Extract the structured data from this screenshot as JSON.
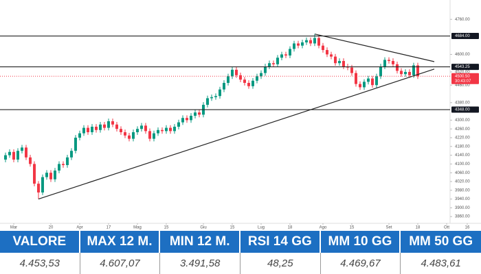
{
  "chart_data": {
    "type": "candlestick",
    "up_color": "#089981",
    "down_color": "#f23645",
    "xlim": [
      -1,
      115
    ],
    "xticks": [
      {
        "value": 2,
        "label": "Mar"
      },
      {
        "value": 11,
        "label": "20"
      },
      {
        "value": 18,
        "label": "Apr"
      },
      {
        "value": 25,
        "label": "17"
      },
      {
        "value": 32,
        "label": "Mag"
      },
      {
        "value": 39,
        "label": "15"
      },
      {
        "value": 48,
        "label": "Giu"
      },
      {
        "value": 55,
        "label": "15"
      },
      {
        "value": 62,
        "label": "Lug"
      },
      {
        "value": 69,
        "label": "18"
      },
      {
        "value": 77,
        "label": "Ago"
      },
      {
        "value": 84,
        "label": "15"
      },
      {
        "value": 93,
        "label": "Set"
      },
      {
        "value": 100,
        "label": "18"
      },
      {
        "value": 107,
        "label": "Ott"
      },
      {
        "value": 112,
        "label": "16"
      }
    ],
    "ylim": [
      3848,
      4792
    ],
    "yticks": [
      {
        "value": 4760,
        "label": "4760.00"
      },
      {
        "value": 4600,
        "label": "4600.00"
      },
      {
        "value": 4520,
        "label": "4520.00"
      },
      {
        "value": 4460,
        "label": "4460.00"
      },
      {
        "value": 4380,
        "label": "4380.00"
      },
      {
        "value": 4300,
        "label": "4300.00"
      },
      {
        "value": 4260,
        "label": "4260.00"
      },
      {
        "value": 4220,
        "label": "4220.00"
      },
      {
        "value": 4180,
        "label": "4180.00"
      },
      {
        "value": 4140,
        "label": "4140.00"
      },
      {
        "value": 4100,
        "label": "4100.00"
      },
      {
        "value": 4060,
        "label": "4060.00"
      },
      {
        "value": 4020,
        "label": "4020.00"
      },
      {
        "value": 3980,
        "label": "3980.00"
      },
      {
        "value": 3940,
        "label": "3940.00"
      },
      {
        "value": 3900,
        "label": "3900.00"
      },
      {
        "value": 3860,
        "label": "3860.00"
      }
    ],
    "levels": [
      {
        "value": 4684,
        "label": "4684.00"
      },
      {
        "value": 4543.25,
        "label": "4543.25"
      },
      {
        "value": 4348,
        "label": "4348.00"
      }
    ],
    "price_tag": {
      "value": 4500.5,
      "label": "4500.50",
      "countdown": "30:43:07"
    },
    "trendlines": [
      {
        "x": [
          8,
          104
        ],
        "y": [
          3940,
          4533
        ]
      },
      {
        "x": [
          75,
          104
        ],
        "y": [
          4693,
          4567
        ]
      }
    ],
    "open": [
      4120,
      4140,
      4155,
      4120,
      4160,
      4175,
      4130,
      4100,
      4010,
      3970,
      4040,
      4060,
      4030,
      4070,
      4100,
      4095,
      4130,
      4160,
      4220,
      4240,
      4265,
      4245,
      4270,
      4255,
      4280,
      4265,
      4295,
      4280,
      4260,
      4245,
      4230,
      4215,
      4245,
      4260,
      4275,
      4250,
      4215,
      4240,
      4255,
      4250,
      4265,
      4250,
      4270,
      4290,
      4310,
      4300,
      4320,
      4335,
      4325,
      4370,
      4400,
      4405,
      4410,
      4440,
      4470,
      4500,
      4530,
      4505,
      4485,
      4470,
      4455,
      4480,
      4500,
      4515,
      4545,
      4560,
      4555,
      4585,
      4600,
      4595,
      4625,
      4650,
      4640,
      4655,
      4665,
      4650,
      4675,
      4640,
      4620,
      4600,
      4590,
      4560,
      4570,
      4545,
      4540,
      4515,
      4465,
      4450,
      4475,
      4490,
      4460,
      4500,
      4545,
      4575,
      4570,
      4555,
      4525,
      4510,
      4520,
      4505,
      4550
    ],
    "high": [
      4152,
      4167,
      4167,
      4172,
      4187,
      4187,
      4142,
      4112,
      4022,
      4052,
      4072,
      4072,
      4082,
      4112,
      4112,
      4142,
      4172,
      4232,
      4252,
      4277,
      4277,
      4282,
      4282,
      4292,
      4292,
      4307,
      4307,
      4292,
      4272,
      4257,
      4242,
      4257,
      4272,
      4287,
      4287,
      4262,
      4252,
      4267,
      4267,
      4277,
      4277,
      4282,
      4302,
      4322,
      4322,
      4332,
      4347,
      4347,
      4382,
      4412,
      4417,
      4422,
      4452,
      4482,
      4512,
      4542,
      4542,
      4517,
      4497,
      4482,
      4492,
      4512,
      4527,
      4557,
      4572,
      4572,
      4597,
      4612,
      4612,
      4637,
      4662,
      4662,
      4667,
      4677,
      4677,
      4693,
      4687,
      4652,
      4632,
      4612,
      4602,
      4582,
      4582,
      4557,
      4552,
      4527,
      4477,
      4487,
      4502,
      4502,
      4512,
      4557,
      4587,
      4587,
      4582,
      4567,
      4537,
      4532,
      4532,
      4562,
      4562
    ],
    "low": [
      4108,
      4128,
      4108,
      4108,
      4148,
      4118,
      4088,
      3998,
      3940,
      3958,
      4028,
      4018,
      4018,
      4058,
      4083,
      4083,
      4118,
      4148,
      4208,
      4228,
      4233,
      4233,
      4243,
      4243,
      4253,
      4253,
      4268,
      4248,
      4233,
      4218,
      4203,
      4203,
      4233,
      4248,
      4238,
      4203,
      4203,
      4228,
      4238,
      4238,
      4238,
      4238,
      4258,
      4278,
      4288,
      4288,
      4308,
      4313,
      4313,
      4358,
      4388,
      4393,
      4398,
      4428,
      4458,
      4488,
      4493,
      4473,
      4458,
      4443,
      4443,
      4468,
      4488,
      4503,
      4533,
      4543,
      4543,
      4573,
      4583,
      4583,
      4613,
      4628,
      4628,
      4643,
      4638,
      4638,
      4628,
      4608,
      4588,
      4578,
      4548,
      4548,
      4533,
      4528,
      4503,
      4453,
      4438,
      4438,
      4463,
      4448,
      4448,
      4488,
      4533,
      4558,
      4543,
      4513,
      4498,
      4498,
      4493,
      4493,
      4488
    ],
    "close": [
      4140,
      4155,
      4120,
      4160,
      4175,
      4130,
      4100,
      4010,
      3970,
      4040,
      4060,
      4030,
      4070,
      4100,
      4095,
      4130,
      4160,
      4220,
      4240,
      4265,
      4245,
      4270,
      4255,
      4280,
      4265,
      4295,
      4280,
      4260,
      4245,
      4230,
      4215,
      4245,
      4260,
      4275,
      4250,
      4215,
      4240,
      4255,
      4250,
      4265,
      4250,
      4270,
      4290,
      4310,
      4300,
      4320,
      4335,
      4325,
      4370,
      4400,
      4405,
      4410,
      4440,
      4470,
      4500,
      4530,
      4505,
      4485,
      4470,
      4455,
      4480,
      4500,
      4515,
      4545,
      4560,
      4555,
      4585,
      4600,
      4595,
      4625,
      4650,
      4640,
      4655,
      4665,
      4650,
      4675,
      4640,
      4620,
      4600,
      4590,
      4560,
      4570,
      4545,
      4540,
      4515,
      4465,
      4450,
      4475,
      4490,
      4460,
      4500,
      4545,
      4575,
      4570,
      4555,
      4525,
      4510,
      4520,
      4505,
      4550,
      4500.5
    ]
  },
  "table": {
    "headers": [
      "VALORE",
      "MAX 12 M.",
      "MIN 12 M.",
      "RSI 14 GG",
      "MM 10 GG",
      "MM 50 GG"
    ],
    "values": [
      "4.453,53",
      "4.607,07",
      "3.491,58",
      "48,25",
      "4.469,67",
      "4.483,61"
    ]
  }
}
